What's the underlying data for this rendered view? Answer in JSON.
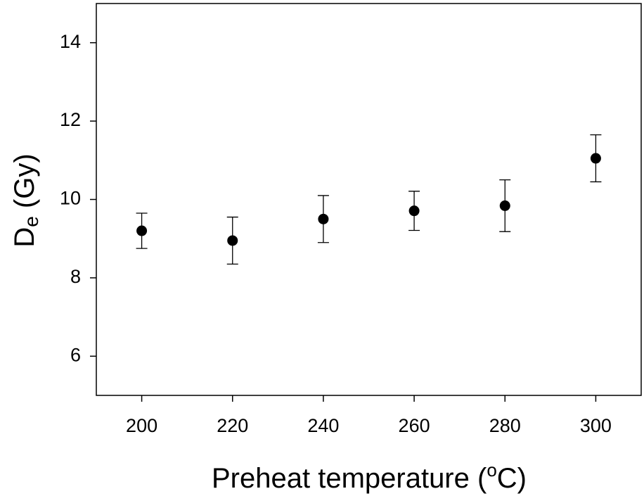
{
  "chart_data": {
    "type": "scatter",
    "x_label": {
      "text": "Preheat temperature (",
      "sup": "o",
      "end": "C)"
    },
    "y_label": {
      "text": "D",
      "sub": "e",
      "end": " (Gy)"
    },
    "x": [
      200,
      220,
      240,
      260,
      280,
      300
    ],
    "series": [
      {
        "color": "#000000",
        "values": [
          9.2,
          8.95,
          9.5,
          9.71,
          9.84,
          11.05
        ],
        "errors": [
          0.45,
          0.6,
          0.6,
          0.5,
          0.66,
          0.6
        ]
      }
    ],
    "xlim": [
      190,
      310
    ],
    "xticks": [
      200,
      220,
      240,
      260,
      280,
      300
    ],
    "ylim": [
      5,
      15
    ],
    "yticks": [
      6,
      8,
      10,
      12,
      14
    ],
    "grid": false
  }
}
